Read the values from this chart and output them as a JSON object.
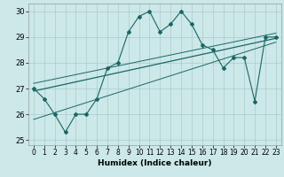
{
  "xlabel": "Humidex (Indice chaleur)",
  "ylabel": "",
  "xlim": [
    -0.5,
    23.5
  ],
  "ylim": [
    24.8,
    30.3
  ],
  "yticks": [
    25,
    26,
    27,
    28,
    29,
    30
  ],
  "xticks": [
    0,
    1,
    2,
    3,
    4,
    5,
    6,
    7,
    8,
    9,
    10,
    11,
    12,
    13,
    14,
    15,
    16,
    17,
    18,
    19,
    20,
    21,
    22,
    23
  ],
  "bg_color": "#cce8e8",
  "grid_color": "#aacccc",
  "line_color": "#1a6666",
  "curve_x": [
    0,
    1,
    2,
    3,
    4,
    5,
    6,
    7,
    8,
    9,
    10,
    11,
    12,
    13,
    14,
    15,
    16,
    17,
    18,
    19,
    20,
    21,
    22,
    23
  ],
  "curve_y": [
    27.0,
    26.6,
    26.0,
    25.3,
    26.0,
    26.0,
    26.6,
    27.8,
    28.0,
    29.2,
    29.8,
    30.0,
    29.2,
    29.5,
    30.0,
    29.5,
    28.7,
    28.5,
    27.8,
    28.2,
    28.2,
    26.5,
    29.0,
    29.0
  ],
  "reg_line": [
    [
      0,
      26.9
    ],
    [
      23,
      28.95
    ]
  ],
  "upper_line": [
    [
      0,
      27.2
    ],
    [
      23,
      29.15
    ]
  ],
  "lower_line": [
    [
      0,
      25.8
    ],
    [
      23,
      28.8
    ]
  ]
}
